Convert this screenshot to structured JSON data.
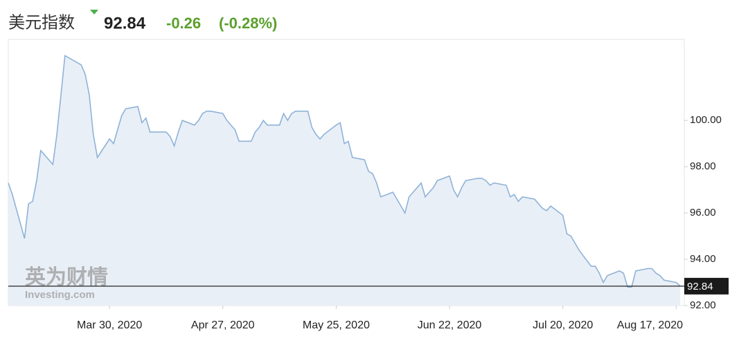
{
  "chart_data": {
    "type": "line",
    "title": "美元指数",
    "last_price": 92.84,
    "change": -0.26,
    "change_percent_label": "(-0.28%)",
    "watermark": [
      "英为财情",
      "Investing.com"
    ],
    "x": [
      "2020-03-05",
      "2020-03-06",
      "2020-03-09",
      "2020-03-10",
      "2020-03-11",
      "2020-03-12",
      "2020-03-13",
      "2020-03-16",
      "2020-03-17",
      "2020-03-18",
      "2020-03-19",
      "2020-03-20",
      "2020-03-23",
      "2020-03-24",
      "2020-03-25",
      "2020-03-26",
      "2020-03-27",
      "2020-03-30",
      "2020-03-31",
      "2020-04-01",
      "2020-04-02",
      "2020-04-03",
      "2020-04-06",
      "2020-04-07",
      "2020-04-08",
      "2020-04-09",
      "2020-04-13",
      "2020-04-14",
      "2020-04-15",
      "2020-04-16",
      "2020-04-17",
      "2020-04-20",
      "2020-04-21",
      "2020-04-22",
      "2020-04-23",
      "2020-04-24",
      "2020-04-27",
      "2020-04-28",
      "2020-04-29",
      "2020-04-30",
      "2020-05-01",
      "2020-05-04",
      "2020-05-05",
      "2020-05-06",
      "2020-05-07",
      "2020-05-08",
      "2020-05-11",
      "2020-05-12",
      "2020-05-13",
      "2020-05-14",
      "2020-05-15",
      "2020-05-18",
      "2020-05-19",
      "2020-05-20",
      "2020-05-21",
      "2020-05-22",
      "2020-05-25",
      "2020-05-26",
      "2020-05-27",
      "2020-05-28",
      "2020-05-29",
      "2020-06-01",
      "2020-06-02",
      "2020-06-03",
      "2020-06-04",
      "2020-06-05",
      "2020-06-08",
      "2020-06-09",
      "2020-06-10",
      "2020-06-11",
      "2020-06-12",
      "2020-06-15",
      "2020-06-16",
      "2020-06-17",
      "2020-06-18",
      "2020-06-19",
      "2020-06-22",
      "2020-06-23",
      "2020-06-24",
      "2020-06-25",
      "2020-06-26",
      "2020-06-29",
      "2020-06-30",
      "2020-07-01",
      "2020-07-02",
      "2020-07-03",
      "2020-07-06",
      "2020-07-07",
      "2020-07-08",
      "2020-07-09",
      "2020-07-10",
      "2020-07-13",
      "2020-07-14",
      "2020-07-15",
      "2020-07-16",
      "2020-07-17",
      "2020-07-20",
      "2020-07-21",
      "2020-07-22",
      "2020-07-23",
      "2020-07-24",
      "2020-07-27",
      "2020-07-28",
      "2020-07-29",
      "2020-07-30",
      "2020-07-31",
      "2020-08-03",
      "2020-08-04",
      "2020-08-05",
      "2020-08-06",
      "2020-08-07",
      "2020-08-10",
      "2020-08-11",
      "2020-08-12",
      "2020-08-13",
      "2020-08-14",
      "2020-08-17",
      "2020-08-18"
    ],
    "values": [
      97.3,
      96.8,
      94.9,
      96.4,
      96.5,
      97.4,
      98.7,
      98.1,
      99.4,
      101.1,
      102.8,
      102.7,
      102.4,
      102.0,
      101.1,
      99.4,
      98.4,
      99.2,
      99.0,
      99.6,
      100.2,
      100.5,
      100.6,
      99.9,
      100.1,
      99.5,
      99.5,
      99.3,
      98.9,
      99.5,
      100.0,
      99.8,
      100.0,
      100.3,
      100.4,
      100.4,
      100.3,
      100.0,
      99.8,
      99.6,
      99.1,
      99.1,
      99.5,
      99.7,
      100.0,
      99.8,
      99.8,
      100.3,
      100.0,
      100.3,
      100.4,
      100.4,
      99.7,
      99.4,
      99.2,
      99.4,
      99.8,
      99.9,
      99.0,
      99.1,
      98.4,
      98.3,
      97.8,
      97.7,
      97.3,
      96.7,
      96.9,
      96.6,
      96.3,
      96.0,
      96.7,
      97.3,
      96.7,
      96.9,
      97.1,
      97.4,
      97.6,
      97.0,
      96.7,
      97.1,
      97.4,
      97.5,
      97.5,
      97.4,
      97.2,
      97.3,
      97.2,
      96.7,
      96.8,
      96.5,
      96.7,
      96.6,
      96.4,
      96.2,
      96.1,
      96.3,
      95.9,
      95.1,
      95.0,
      94.7,
      94.4,
      93.7,
      93.7,
      93.4,
      93.0,
      93.3,
      93.5,
      93.4,
      92.8,
      92.8,
      93.5,
      93.6,
      93.6,
      93.4,
      93.3,
      93.1,
      93.0,
      92.84
    ],
    "color": "#8eb2d8",
    "area_color": "#e9eff7",
    "xlim": [
      "2020-03-05",
      "2020-08-19"
    ],
    "ylim": [
      92,
      103.5
    ],
    "yticks": [
      {
        "value": 92,
        "label": "92.00"
      },
      {
        "value": 94,
        "label": "94.00"
      },
      {
        "value": 96,
        "label": "96.00"
      },
      {
        "value": 98,
        "label": "98.00"
      },
      {
        "value": 100,
        "label": "100.00"
      }
    ],
    "xticks": [
      {
        "value": "2020-03-30",
        "label": "Mar 30, 2020"
      },
      {
        "value": "2020-04-27",
        "label": "Apr 27, 2020"
      },
      {
        "value": "2020-05-25",
        "label": "May 25, 2020"
      },
      {
        "value": "2020-06-22",
        "label": "Jun 22, 2020"
      },
      {
        "value": "2020-07-20",
        "label": "Jul 20, 2020"
      },
      {
        "value": "2020-08-17",
        "label": "Aug 17, 2020"
      }
    ]
  }
}
